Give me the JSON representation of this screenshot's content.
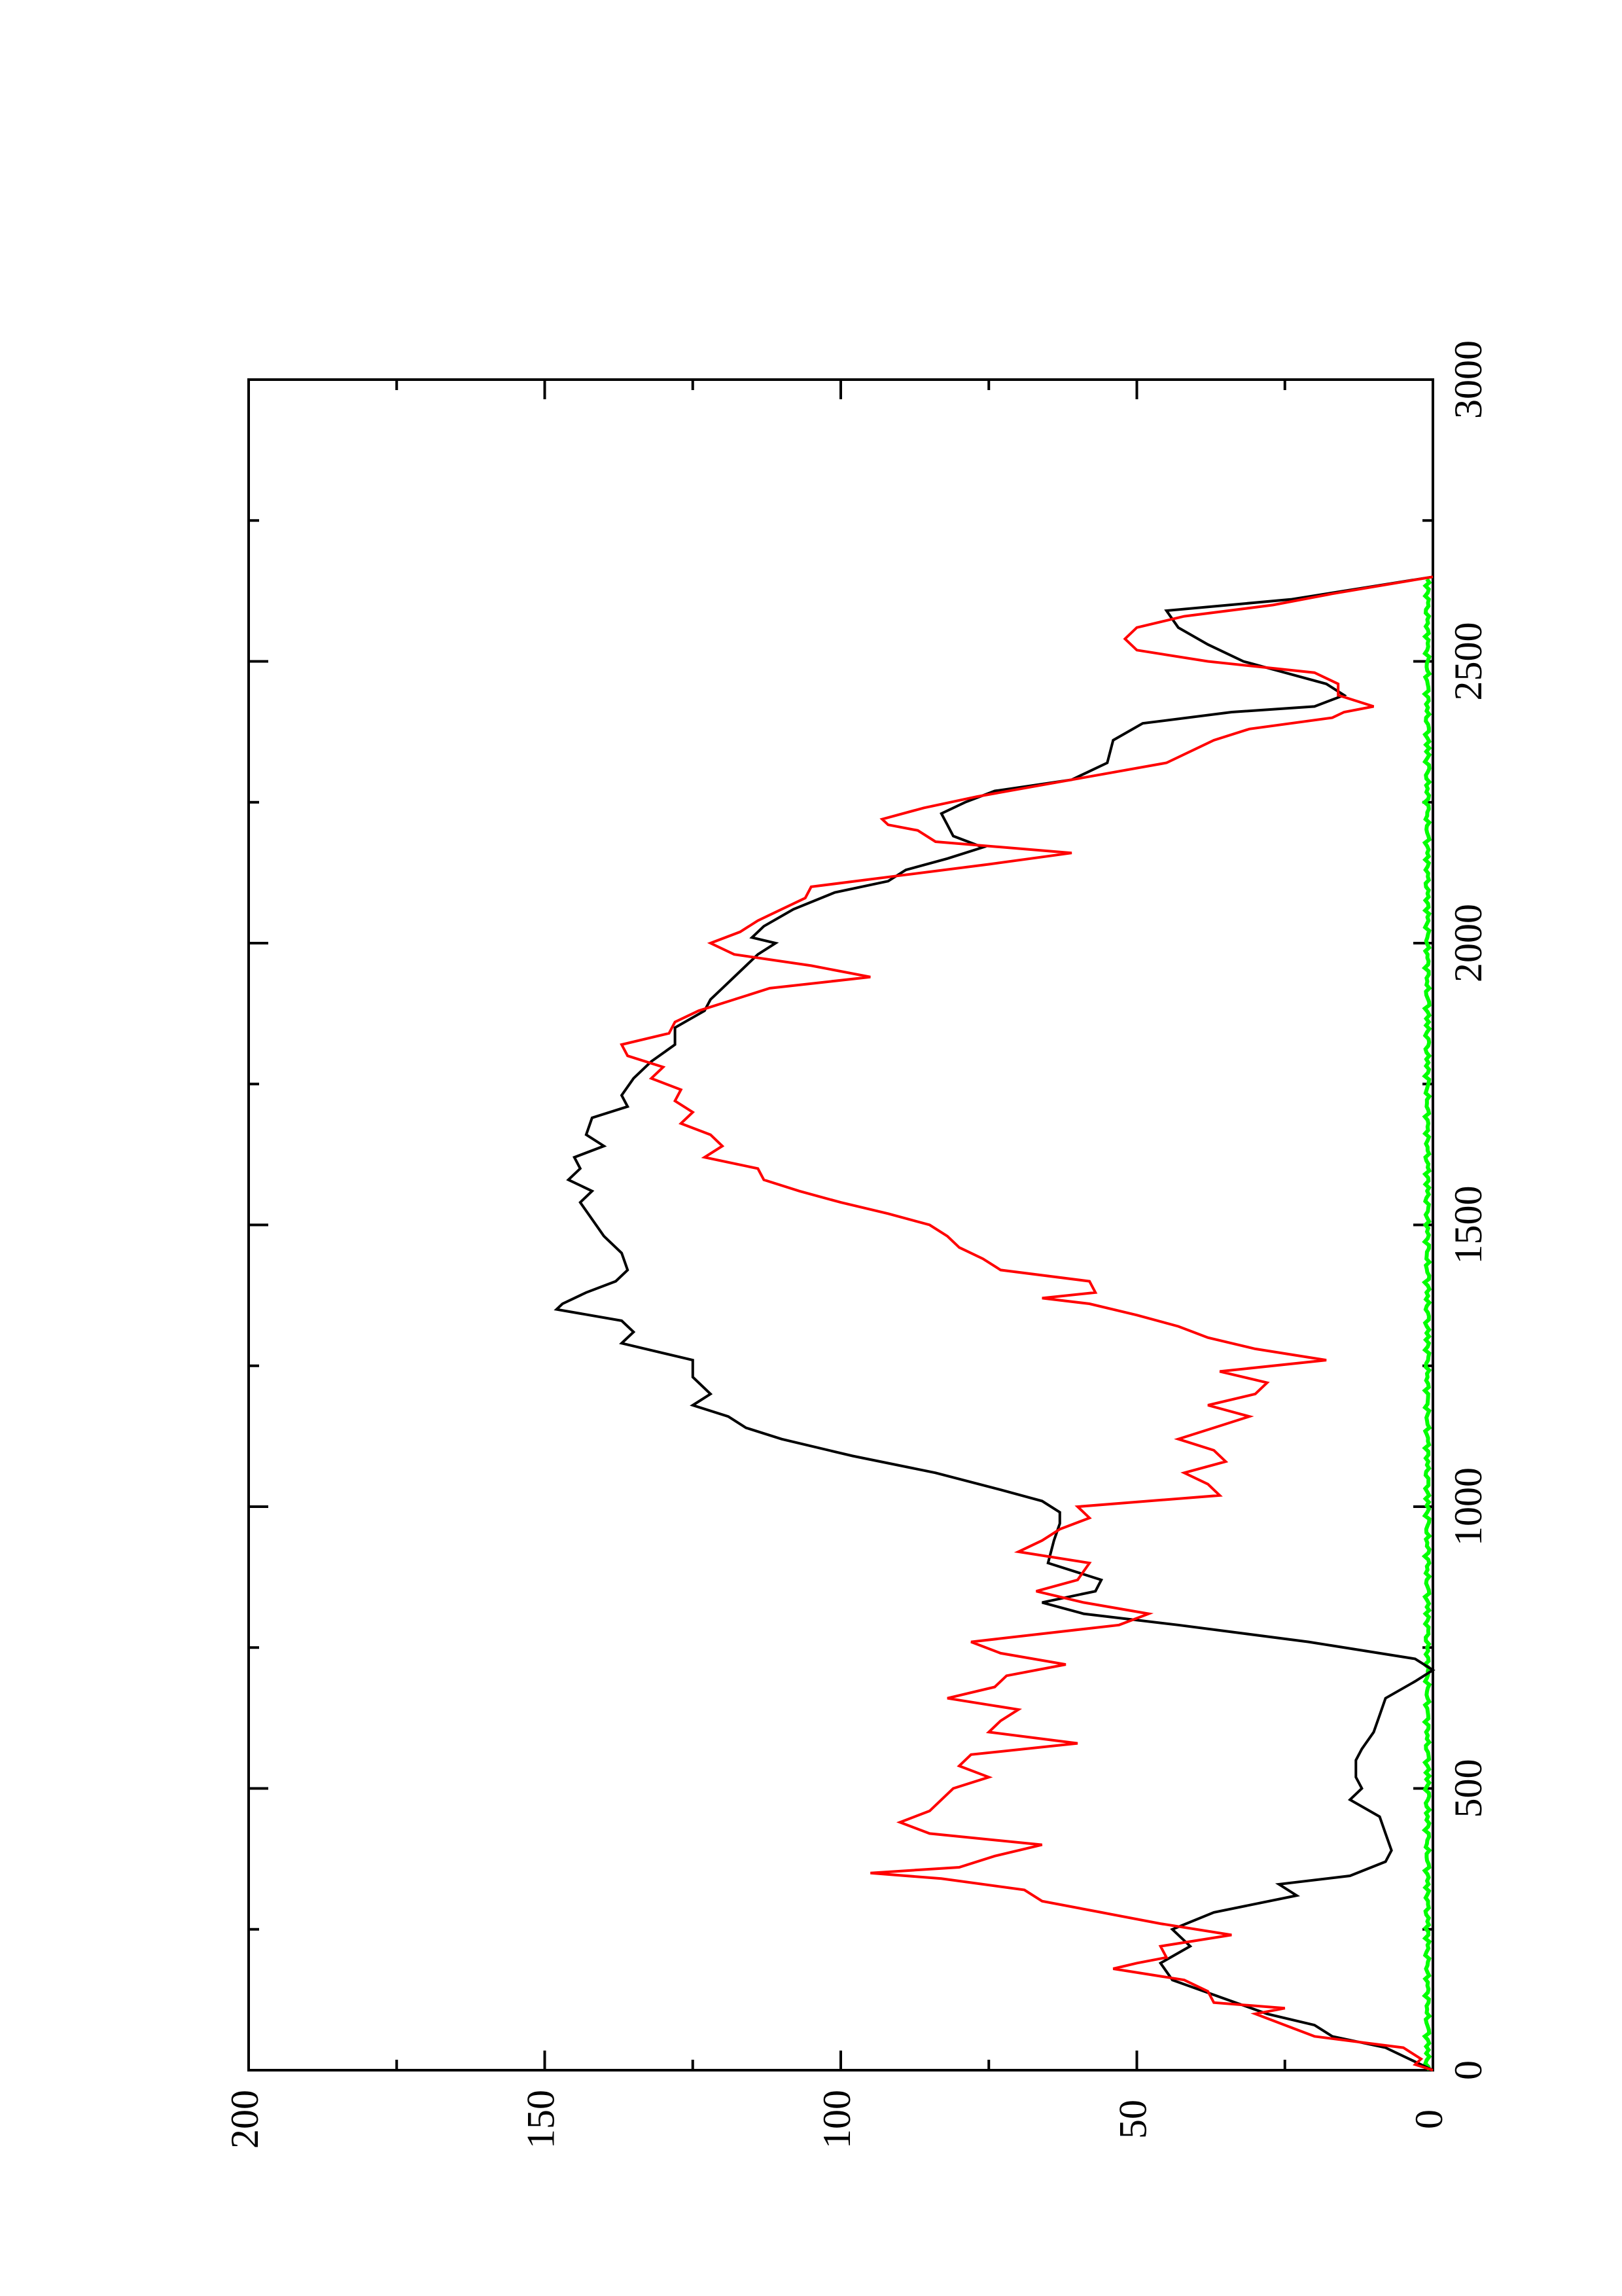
{
  "chart_data": {
    "type": "line",
    "orientation": "rotated 90 degrees counter-clockwise",
    "title": "",
    "xlabel": "",
    "ylabel": "",
    "xlim": [
      0,
      3000
    ],
    "ylim": [
      0,
      200
    ],
    "x_ticks": [
      "0",
      "500",
      "1000",
      "1500",
      "2000",
      "2500",
      "3000"
    ],
    "y_ticks": [
      "0",
      "50",
      "100",
      "150",
      "200"
    ],
    "grid": false,
    "legend": "none",
    "series": [
      {
        "color": "#000000",
        "points": [
          [
            0,
            0
          ],
          [
            20,
            4
          ],
          [
            40,
            8
          ],
          [
            60,
            17
          ],
          [
            80,
            20
          ],
          [
            100,
            28
          ],
          [
            130,
            36
          ],
          [
            160,
            44
          ],
          [
            190,
            46
          ],
          [
            220,
            41
          ],
          [
            250,
            44
          ],
          [
            280,
            37
          ],
          [
            310,
            23
          ],
          [
            330,
            26
          ],
          [
            345,
            14
          ],
          [
            370,
            8
          ],
          [
            390,
            7
          ],
          [
            420,
            8
          ],
          [
            450,
            9
          ],
          [
            480,
            14
          ],
          [
            500,
            12
          ],
          [
            520,
            13
          ],
          [
            550,
            13
          ],
          [
            570,
            12
          ],
          [
            600,
            10
          ],
          [
            630,
            9
          ],
          [
            660,
            8
          ],
          [
            690,
            3
          ],
          [
            710,
            0
          ],
          [
            730,
            3
          ],
          [
            760,
            21
          ],
          [
            790,
            43
          ],
          [
            810,
            59
          ],
          [
            830,
            66
          ],
          [
            850,
            57
          ],
          [
            870,
            56
          ],
          [
            900,
            65
          ],
          [
            940,
            64
          ],
          [
            970,
            63
          ],
          [
            990,
            63
          ],
          [
            1010,
            66
          ],
          [
            1030,
            73
          ],
          [
            1060,
            84
          ],
          [
            1090,
            98
          ],
          [
            1120,
            110
          ],
          [
            1140,
            116
          ],
          [
            1160,
            119
          ],
          [
            1180,
            125
          ],
          [
            1200,
            122
          ],
          [
            1230,
            125
          ],
          [
            1260,
            125
          ],
          [
            1290,
            137
          ],
          [
            1310,
            135
          ],
          [
            1330,
            137
          ],
          [
            1350,
            148
          ],
          [
            1360,
            147
          ],
          [
            1380,
            143
          ],
          [
            1400,
            138
          ],
          [
            1420,
            136
          ],
          [
            1450,
            137
          ],
          [
            1480,
            140
          ],
          [
            1510,
            142
          ],
          [
            1540,
            144
          ],
          [
            1560,
            142
          ],
          [
            1580,
            146
          ],
          [
            1600,
            144
          ],
          [
            1620,
            145
          ],
          [
            1640,
            140
          ],
          [
            1660,
            143
          ],
          [
            1690,
            142
          ],
          [
            1710,
            136
          ],
          [
            1730,
            137
          ],
          [
            1760,
            135
          ],
          [
            1790,
            132
          ],
          [
            1820,
            128
          ],
          [
            1850,
            128
          ],
          [
            1880,
            123
          ],
          [
            1900,
            122
          ],
          [
            1920,
            120
          ],
          [
            1950,
            117
          ],
          [
            1980,
            114
          ],
          [
            2000,
            111
          ],
          [
            2010,
            115
          ],
          [
            2030,
            113
          ],
          [
            2060,
            108
          ],
          [
            2090,
            101
          ],
          [
            2110,
            92
          ],
          [
            2130,
            89
          ],
          [
            2150,
            82
          ],
          [
            2170,
            76
          ],
          [
            2190,
            81
          ],
          [
            2210,
            82
          ],
          [
            2230,
            83
          ],
          [
            2250,
            79
          ],
          [
            2270,
            74
          ],
          [
            2290,
            61
          ],
          [
            2320,
            55
          ],
          [
            2360,
            54
          ],
          [
            2390,
            49
          ],
          [
            2410,
            34
          ],
          [
            2420,
            20
          ],
          [
            2440,
            15
          ],
          [
            2460,
            18
          ],
          [
            2480,
            25
          ],
          [
            2500,
            32
          ],
          [
            2530,
            38
          ],
          [
            2560,
            43
          ],
          [
            2590,
            45
          ],
          [
            2610,
            24
          ],
          [
            2630,
            12
          ],
          [
            2650,
            0
          ]
        ]
      },
      {
        "color": "#ff0000",
        "points": [
          [
            0,
            0
          ],
          [
            10,
            3
          ],
          [
            20,
            2
          ],
          [
            40,
            5
          ],
          [
            60,
            20
          ],
          [
            80,
            25
          ],
          [
            100,
            30
          ],
          [
            110,
            25
          ],
          [
            120,
            37
          ],
          [
            140,
            38
          ],
          [
            160,
            42
          ],
          [
            180,
            54
          ],
          [
            190,
            50
          ],
          [
            200,
            45
          ],
          [
            220,
            46
          ],
          [
            240,
            34
          ],
          [
            260,
            46
          ],
          [
            280,
            56
          ],
          [
            300,
            66
          ],
          [
            320,
            69
          ],
          [
            340,
            83
          ],
          [
            350,
            95
          ],
          [
            360,
            80
          ],
          [
            380,
            74
          ],
          [
            400,
            66
          ],
          [
            420,
            85
          ],
          [
            440,
            90
          ],
          [
            460,
            85
          ],
          [
            500,
            81
          ],
          [
            520,
            75
          ],
          [
            540,
            80
          ],
          [
            560,
            78
          ],
          [
            580,
            60
          ],
          [
            600,
            75
          ],
          [
            620,
            73
          ],
          [
            640,
            70
          ],
          [
            660,
            82
          ],
          [
            680,
            74
          ],
          [
            700,
            72
          ],
          [
            720,
            62
          ],
          [
            740,
            73
          ],
          [
            760,
            78
          ],
          [
            790,
            53
          ],
          [
            810,
            48
          ],
          [
            830,
            59
          ],
          [
            850,
            67
          ],
          [
            870,
            60
          ],
          [
            900,
            58
          ],
          [
            920,
            70
          ],
          [
            940,
            66
          ],
          [
            960,
            63
          ],
          [
            980,
            58
          ],
          [
            1000,
            60
          ],
          [
            1020,
            36
          ],
          [
            1040,
            38
          ],
          [
            1060,
            42
          ],
          [
            1080,
            35
          ],
          [
            1100,
            37
          ],
          [
            1120,
            43
          ],
          [
            1140,
            37
          ],
          [
            1160,
            31
          ],
          [
            1180,
            38
          ],
          [
            1200,
            30
          ],
          [
            1220,
            28
          ],
          [
            1240,
            36
          ],
          [
            1260,
            18
          ],
          [
            1280,
            30
          ],
          [
            1300,
            38
          ],
          [
            1320,
            43
          ],
          [
            1340,
            50
          ],
          [
            1360,
            58
          ],
          [
            1370,
            66
          ],
          [
            1380,
            57
          ],
          [
            1400,
            58
          ],
          [
            1420,
            73
          ],
          [
            1440,
            76
          ],
          [
            1460,
            80
          ],
          [
            1480,
            82
          ],
          [
            1500,
            85
          ],
          [
            1520,
            92
          ],
          [
            1540,
            100
          ],
          [
            1560,
            107
          ],
          [
            1580,
            113
          ],
          [
            1600,
            114
          ],
          [
            1620,
            123
          ],
          [
            1640,
            120
          ],
          [
            1660,
            122
          ],
          [
            1680,
            127
          ],
          [
            1700,
            125
          ],
          [
            1720,
            128
          ],
          [
            1740,
            127
          ],
          [
            1760,
            132
          ],
          [
            1780,
            130
          ],
          [
            1800,
            136
          ],
          [
            1820,
            137
          ],
          [
            1840,
            129
          ],
          [
            1860,
            128
          ],
          [
            1880,
            124
          ],
          [
            1900,
            118
          ],
          [
            1920,
            112
          ],
          [
            1940,
            95
          ],
          [
            1960,
            105
          ],
          [
            1980,
            118
          ],
          [
            2000,
            122
          ],
          [
            2020,
            117
          ],
          [
            2040,
            114
          ],
          [
            2060,
            110
          ],
          [
            2080,
            106
          ],
          [
            2100,
            105
          ],
          [
            2120,
            90
          ],
          [
            2140,
            75
          ],
          [
            2160,
            61
          ],
          [
            2180,
            84
          ],
          [
            2200,
            87
          ],
          [
            2210,
            92
          ],
          [
            2220,
            93
          ],
          [
            2240,
            86
          ],
          [
            2260,
            77
          ],
          [
            2290,
            61
          ],
          [
            2320,
            45
          ],
          [
            2360,
            37
          ],
          [
            2380,
            31
          ],
          [
            2400,
            17
          ],
          [
            2410,
            15
          ],
          [
            2420,
            10
          ],
          [
            2440,
            16
          ],
          [
            2460,
            16
          ],
          [
            2480,
            20
          ],
          [
            2500,
            38
          ],
          [
            2520,
            50
          ],
          [
            2540,
            52
          ],
          [
            2560,
            50
          ],
          [
            2580,
            42
          ],
          [
            2600,
            27
          ],
          [
            2620,
            17
          ],
          [
            2650,
            0
          ]
        ]
      },
      {
        "color": "#00ff00",
        "points": [
          [
            0,
            0
          ],
          [
            2650,
            0
          ]
        ]
      }
    ]
  }
}
